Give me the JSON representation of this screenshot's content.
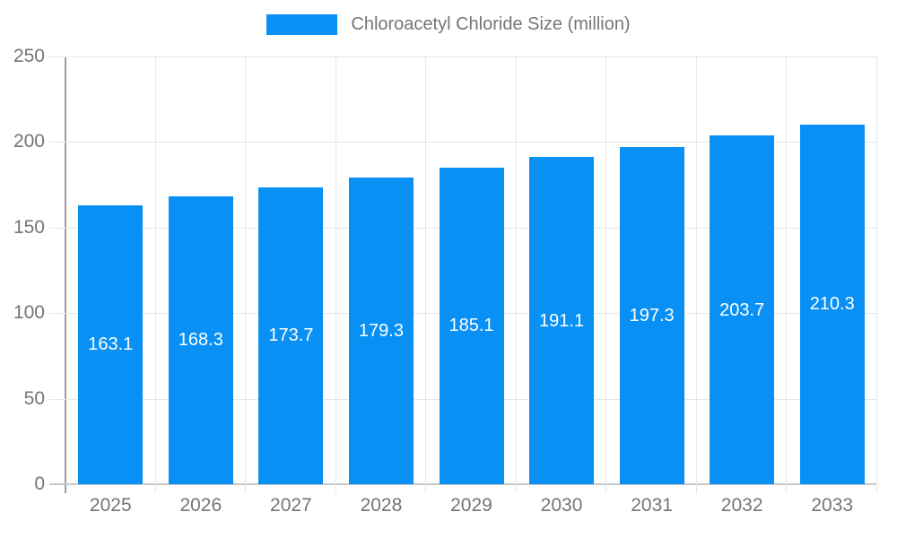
{
  "legend": {
    "label": "Chloroacetyl Chloride Size (million)"
  },
  "chart_data": {
    "type": "bar",
    "title": "Chloroacetyl Chloride Size (million)",
    "categories": [
      "2025",
      "2026",
      "2027",
      "2028",
      "2029",
      "2030",
      "2031",
      "2032",
      "2033"
    ],
    "values": [
      163.1,
      168.3,
      173.7,
      179.3,
      185.1,
      191.1,
      197.3,
      203.7,
      210.3
    ],
    "xlabel": "",
    "ylabel": "",
    "ylim": [
      0,
      250
    ],
    "yticks": [
      0,
      50,
      100,
      150,
      200,
      250
    ],
    "grid": true,
    "legend_position": "top",
    "value_labels": "inside-center"
  },
  "colors": {
    "bar": "#0890f5",
    "axis_text": "#757575",
    "gridline": "#e6e6e6",
    "baseline": "#c9c9c9",
    "axis_line": "#9e9e9e",
    "value_label": "#ffffff"
  }
}
